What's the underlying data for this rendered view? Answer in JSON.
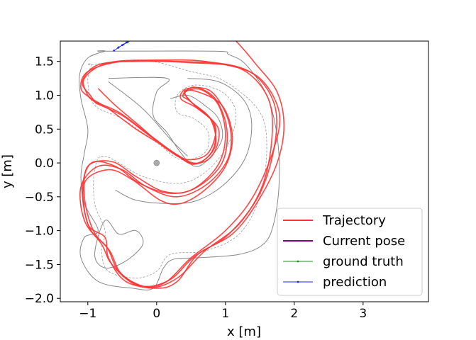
{
  "chart_data": {
    "type": "line",
    "xlabel": "x [m]",
    "ylabel": "y [m]",
    "xlim": [
      -1.4,
      3.95
    ],
    "ylim": [
      -2.05,
      1.8
    ],
    "xticks": [
      -1,
      0,
      1,
      2,
      3
    ],
    "yticks": [
      -2.0,
      -1.5,
      -1.0,
      -0.5,
      0.0,
      0.5,
      1.0,
      1.5
    ],
    "grid": false,
    "legend_location": "lower-right",
    "legend": [
      {
        "label": "Trajectory",
        "color": "#ff3333",
        "style": "line"
      },
      {
        "label": "Current pose",
        "color": "#800080",
        "style": "line"
      },
      {
        "label": "ground truth",
        "color": "#228B22",
        "style": "marker-line"
      },
      {
        "label": "prediction",
        "color": "#1f1fff",
        "style": "marker-line"
      }
    ],
    "track": {
      "color": "#888888",
      "dashed_color": "#999999",
      "center_marker": {
        "x": 0.0,
        "y": 0.0,
        "color": "#aaaaaa"
      },
      "outer_boundary": [
        [
          -0.75,
          1.65
        ],
        [
          0.85,
          1.65
        ],
        [
          1.05,
          1.6
        ],
        [
          1.3,
          1.45
        ],
        [
          1.6,
          1.0
        ],
        [
          1.75,
          0.4
        ],
        [
          1.78,
          -0.3
        ],
        [
          1.7,
          -0.9
        ],
        [
          1.55,
          -1.2
        ],
        [
          1.2,
          -1.35
        ],
        [
          0.6,
          -1.4
        ],
        [
          0.25,
          -1.42
        ],
        [
          0.1,
          -1.55
        ],
        [
          -0.05,
          -1.85
        ],
        [
          -0.35,
          -1.85
        ],
        [
          -0.85,
          -1.75
        ],
        [
          -1.1,
          -1.4
        ],
        [
          -1.05,
          -1.1
        ],
        [
          -0.85,
          -1.0
        ],
        [
          -1.05,
          -0.6
        ],
        [
          -1.1,
          -0.2
        ],
        [
          -1.05,
          0.15
        ],
        [
          -1.0,
          0.5
        ],
        [
          -1.1,
          0.95
        ],
        [
          -1.12,
          1.3
        ],
        [
          -1.0,
          1.55
        ],
        [
          -0.75,
          1.65
        ]
      ],
      "inner_boundary": [
        [
          -0.7,
          1.25
        ],
        [
          0.15,
          1.25
        ],
        [
          0.0,
          1.05
        ],
        [
          -0.05,
          0.7
        ],
        [
          0.15,
          0.45
        ],
        [
          0.35,
          0.15
        ],
        [
          0.55,
          -0.05
        ],
        [
          0.75,
          0.05
        ],
        [
          0.95,
          0.35
        ],
        [
          0.9,
          0.65
        ],
        [
          0.7,
          0.85
        ],
        [
          0.45,
          1.0
        ],
        [
          0.2,
          0.95
        ]
      ],
      "inner_boundary_2": [
        [
          -0.6,
          -0.4
        ],
        [
          -0.3,
          -0.55
        ],
        [
          0.2,
          -0.6
        ],
        [
          0.6,
          -0.55
        ],
        [
          1.0,
          -0.3
        ],
        [
          1.3,
          0.1
        ],
        [
          1.38,
          0.6
        ],
        [
          1.25,
          0.95
        ],
        [
          0.9,
          1.2
        ],
        [
          0.45,
          1.25
        ]
      ],
      "inner_boundary_3": [
        [
          -0.75,
          -0.85
        ],
        [
          -0.55,
          -1.05
        ],
        [
          -0.3,
          -1.0
        ],
        [
          -0.2,
          -1.2
        ],
        [
          -0.45,
          -1.45
        ],
        [
          -0.75,
          -1.55
        ],
        [
          -0.9,
          -1.35
        ]
      ],
      "diagonal_lane": [
        [
          -0.7,
          1.2
        ],
        [
          -0.2,
          0.8
        ],
        [
          0.2,
          0.35
        ],
        [
          0.45,
          0.1
        ]
      ],
      "dashed_centerline": [
        [
          -0.95,
          1.45
        ],
        [
          -0.2,
          1.52
        ],
        [
          0.5,
          1.35
        ],
        [
          1.0,
          1.2
        ],
        [
          1.5,
          0.75
        ],
        [
          1.6,
          0.2
        ],
        [
          1.5,
          -0.5
        ],
        [
          1.2,
          -1.05
        ],
        [
          0.7,
          -1.3
        ],
        [
          0.2,
          -1.35
        ],
        [
          0.0,
          -1.6
        ],
        [
          -0.3,
          -1.7
        ],
        [
          -0.7,
          -1.6
        ],
        [
          -0.8,
          -1.3
        ],
        [
          -0.75,
          -1.0
        ],
        [
          -0.9,
          -0.6
        ],
        [
          -0.9,
          -0.1
        ],
        [
          -0.75,
          0.1
        ],
        [
          -0.2,
          -0.2
        ],
        [
          0.35,
          -0.3
        ],
        [
          0.75,
          -0.1
        ],
        [
          1.05,
          0.3
        ],
        [
          1.15,
          0.75
        ],
        [
          0.95,
          1.05
        ],
        [
          0.55,
          1.15
        ],
        [
          0.3,
          1.0
        ],
        [
          0.3,
          0.75
        ],
        [
          0.55,
          0.65
        ],
        [
          0.75,
          0.45
        ],
        [
          0.7,
          0.15
        ],
        [
          0.35,
          0.05
        ],
        [
          0.0,
          0.3
        ],
        [
          -0.5,
          0.65
        ],
        [
          -0.9,
          0.85
        ],
        [
          -1.0,
          1.2
        ],
        [
          -0.95,
          1.45
        ]
      ]
    },
    "series": [
      {
        "name": "Trajectory",
        "color": "#ff3333",
        "laps": [
          [
            [
              -0.85,
              1.1
            ],
            [
              -0.6,
              0.85
            ],
            [
              -0.25,
              0.55
            ],
            [
              0.15,
              0.2
            ],
            [
              0.45,
              0.05
            ],
            [
              0.75,
              0.15
            ],
            [
              0.85,
              0.55
            ],
            [
              0.55,
              0.85
            ],
            [
              0.4,
              1.05
            ],
            [
              0.6,
              1.05
            ],
            [
              0.95,
              0.85
            ],
            [
              1.1,
              0.4
            ],
            [
              1.0,
              -0.05
            ],
            [
              0.7,
              -0.4
            ],
            [
              0.35,
              -0.6
            ],
            [
              0.05,
              -0.55
            ],
            [
              -0.35,
              -0.25
            ],
            [
              -0.7,
              -0.1
            ],
            [
              -1.05,
              -0.3
            ],
            [
              -1.0,
              -0.9
            ],
            [
              -0.75,
              -1.1
            ],
            [
              -0.7,
              -1.4
            ],
            [
              -0.45,
              -1.75
            ],
            [
              0.0,
              -1.85
            ],
            [
              0.3,
              -1.75
            ],
            [
              0.6,
              -1.35
            ],
            [
              1.1,
              -1.05
            ],
            [
              1.45,
              -0.6
            ],
            [
              1.75,
              0.0
            ],
            [
              1.85,
              0.55
            ],
            [
              1.75,
              1.05
            ],
            [
              1.45,
              1.45
            ],
            [
              1.2,
              1.75
            ],
            [
              1.0,
              1.95
            ]
          ],
          [
            [
              -0.95,
              0.95
            ],
            [
              -0.7,
              0.8
            ],
            [
              -0.3,
              0.5
            ],
            [
              0.1,
              0.25
            ],
            [
              0.5,
              0.0
            ],
            [
              0.8,
              0.1
            ],
            [
              0.9,
              0.5
            ],
            [
              0.6,
              0.8
            ],
            [
              0.35,
              0.95
            ],
            [
              0.45,
              1.1
            ],
            [
              0.8,
              1.05
            ],
            [
              1.05,
              0.6
            ],
            [
              1.05,
              0.1
            ],
            [
              0.75,
              -0.3
            ],
            [
              0.3,
              -0.5
            ],
            [
              -0.15,
              -0.35
            ],
            [
              -0.5,
              -0.1
            ],
            [
              -0.85,
              -0.05
            ],
            [
              -1.1,
              -0.35
            ],
            [
              -1.05,
              -0.85
            ],
            [
              -0.8,
              -1.2
            ],
            [
              -0.65,
              -1.5
            ],
            [
              -0.3,
              -1.8
            ],
            [
              0.1,
              -1.78
            ],
            [
              0.5,
              -1.4
            ],
            [
              1.0,
              -1.0
            ],
            [
              1.4,
              -0.5
            ],
            [
              1.7,
              0.2
            ],
            [
              1.78,
              0.75
            ],
            [
              1.5,
              1.25
            ],
            [
              1.0,
              1.45
            ],
            [
              0.3,
              1.5
            ],
            [
              -0.5,
              1.5
            ],
            [
              -1.0,
              1.35
            ],
            [
              -1.1,
              1.1
            ],
            [
              -0.95,
              0.95
            ]
          ],
          [
            [
              -0.9,
              0.9
            ],
            [
              -0.55,
              0.75
            ],
            [
              -0.15,
              0.45
            ],
            [
              0.25,
              0.15
            ],
            [
              0.55,
              -0.02
            ],
            [
              0.82,
              0.2
            ],
            [
              0.82,
              0.6
            ],
            [
              0.5,
              0.9
            ],
            [
              0.38,
              1.0
            ],
            [
              0.55,
              1.12
            ],
            [
              0.85,
              0.95
            ],
            [
              1.02,
              0.5
            ],
            [
              0.95,
              0.0
            ],
            [
              0.6,
              -0.35
            ],
            [
              0.2,
              -0.45
            ],
            [
              -0.25,
              -0.3
            ],
            [
              -0.6,
              -0.05
            ],
            [
              -0.95,
              0.0
            ],
            [
              -1.08,
              -0.4
            ],
            [
              -0.98,
              -0.95
            ],
            [
              -0.72,
              -1.25
            ],
            [
              -0.55,
              -1.6
            ],
            [
              -0.2,
              -1.82
            ],
            [
              0.2,
              -1.72
            ],
            [
              0.55,
              -1.38
            ],
            [
              1.05,
              -1.05
            ],
            [
              1.5,
              -0.45
            ],
            [
              1.72,
              0.3
            ],
            [
              1.7,
              0.9
            ],
            [
              1.35,
              1.35
            ],
            [
              0.7,
              1.5
            ],
            [
              0.0,
              1.52
            ],
            [
              -0.7,
              1.48
            ],
            [
              -1.05,
              1.25
            ],
            [
              -1.0,
              1.0
            ],
            [
              -0.9,
              0.9
            ]
          ],
          [
            [
              -0.88,
              0.88
            ],
            [
              -0.5,
              0.7
            ],
            [
              -0.1,
              0.4
            ],
            [
              0.3,
              0.12
            ],
            [
              0.6,
              0.0
            ],
            [
              0.85,
              0.25
            ],
            [
              0.78,
              0.65
            ],
            [
              0.48,
              0.92
            ],
            [
              0.42,
              1.05
            ],
            [
              0.65,
              1.08
            ],
            [
              0.9,
              0.85
            ],
            [
              1.0,
              0.4
            ],
            [
              0.88,
              -0.05
            ],
            [
              0.5,
              -0.4
            ],
            [
              0.1,
              -0.42
            ],
            [
              -0.3,
              -0.2
            ],
            [
              -0.65,
              0.02
            ],
            [
              -1.0,
              -0.05
            ],
            [
              -1.05,
              -0.5
            ],
            [
              -0.92,
              -1.0
            ],
            [
              -0.68,
              -1.3
            ],
            [
              -0.5,
              -1.65
            ],
            [
              -0.1,
              -1.84
            ],
            [
              0.3,
              -1.7
            ],
            [
              0.7,
              -1.3
            ],
            [
              1.2,
              -0.9
            ],
            [
              1.55,
              -0.3
            ],
            [
              1.68,
              0.45
            ],
            [
              1.6,
              1.0
            ],
            [
              1.2,
              1.4
            ],
            [
              0.5,
              1.48
            ],
            [
              -0.3,
              1.5
            ],
            [
              -0.85,
              1.45
            ],
            [
              -1.08,
              1.2
            ],
            [
              -0.95,
              0.98
            ],
            [
              -0.88,
              0.88
            ]
          ]
        ]
      },
      {
        "name": "ground truth",
        "color": "#228B22",
        "points": [
          [
            -0.62,
            1.66
          ],
          [
            -0.55,
            1.71
          ],
          [
            -0.48,
            1.75
          ],
          [
            -0.42,
            1.78
          ],
          [
            -0.36,
            1.82
          ]
        ]
      },
      {
        "name": "prediction",
        "color": "#1f1fff",
        "points": [
          [
            -0.62,
            1.66
          ],
          [
            -0.56,
            1.7
          ],
          [
            -0.5,
            1.74
          ],
          [
            -0.44,
            1.78
          ],
          [
            -0.38,
            1.82
          ]
        ]
      }
    ]
  }
}
